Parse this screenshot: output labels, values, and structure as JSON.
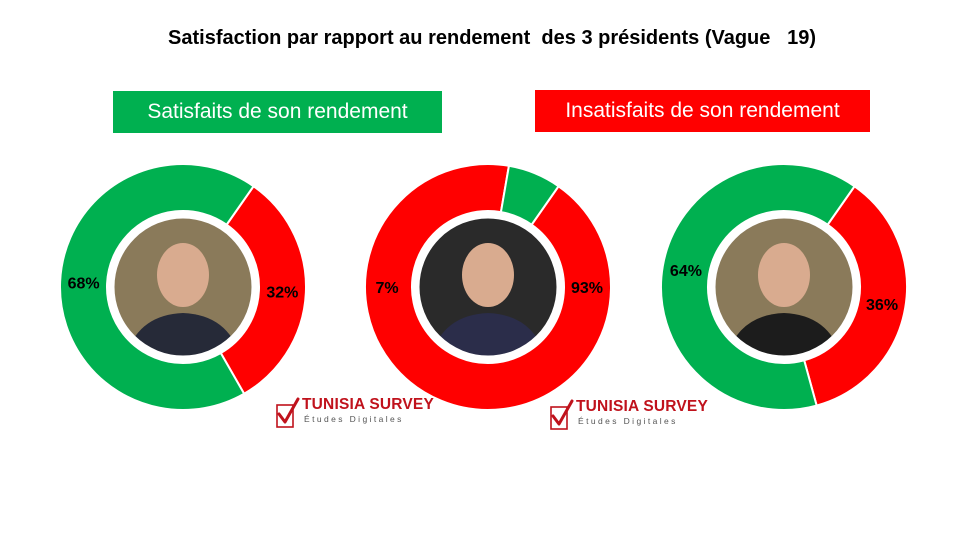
{
  "title": "Satisfaction par rapport au rendement  des 3 présidents (Vague   19)",
  "legend": {
    "satisfied": "Satisfaits de son rendement",
    "dissatisfied": "Insatisfaits de son rendement"
  },
  "colors": {
    "satisfied": "#00b050",
    "dissatisfied": "#ff0000"
  },
  "chart_data": [
    {
      "type": "pie",
      "slices": [
        {
          "label": "Satisfaits de son rendement",
          "value": 68,
          "text": "68%"
        },
        {
          "label": "Insatisfaits de son rendement",
          "value": 32,
          "text": "32%"
        }
      ]
    },
    {
      "type": "pie",
      "slices": [
        {
          "label": "Satisfaits de son rendement",
          "value": 7,
          "text": "7%"
        },
        {
          "label": "Insatisfaits de son rendement",
          "value": 93,
          "text": "93%"
        }
      ]
    },
    {
      "type": "pie",
      "slices": [
        {
          "label": "Satisfaits de son rendement",
          "value": 64,
          "text": "64%"
        },
        {
          "label": "Insatisfaits de son rendement",
          "value": 36,
          "text": "36%"
        }
      ]
    }
  ],
  "logos": [
    {
      "brand": "TUNISIA SURVEY",
      "subtitle": "Études Digitales"
    },
    {
      "brand": "TUNISIA SURVEY",
      "subtitle": "Études Digitales"
    }
  ]
}
